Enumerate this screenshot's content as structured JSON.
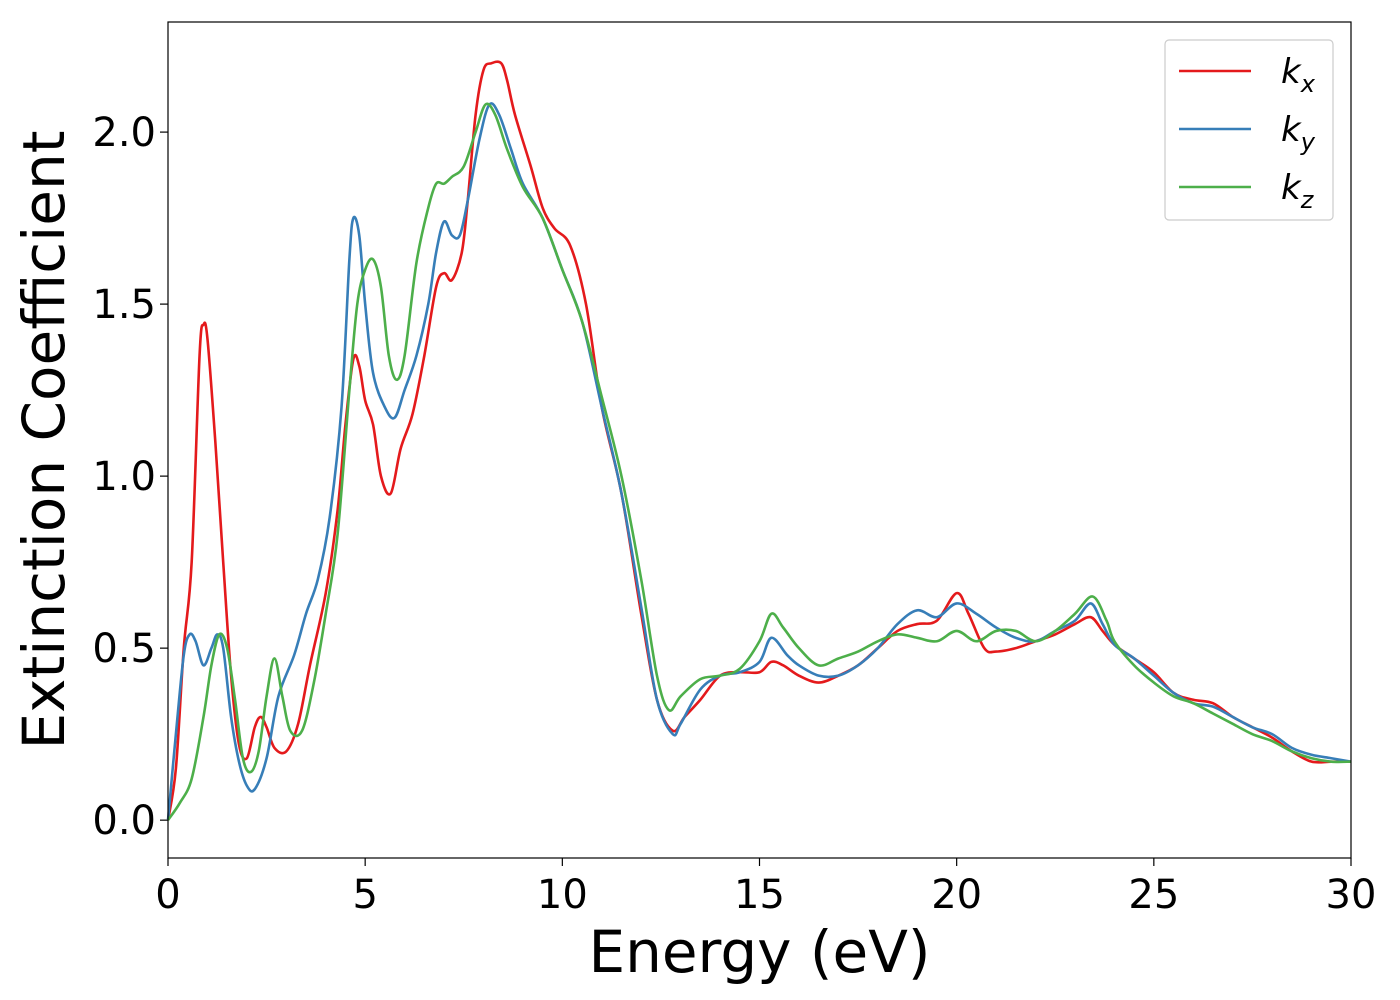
{
  "chart_data": {
    "type": "line",
    "xlabel": "Energy (eV)",
    "ylabel": "Extinction Coefficient",
    "xlim": [
      0,
      30
    ],
    "ylim": [
      -0.11,
      2.32
    ],
    "xticks": [
      0,
      5,
      10,
      15,
      20,
      25,
      30
    ],
    "yticks": [
      0.0,
      0.5,
      1.0,
      1.5,
      2.0
    ],
    "xtick_labels": [
      "0",
      "5",
      "10",
      "15",
      "20",
      "25",
      "30"
    ],
    "ytick_labels": [
      "0.0",
      "0.5",
      "1.0",
      "1.5",
      "2.0"
    ],
    "grid": false,
    "legend_position": "top-right",
    "series": [
      {
        "name": "k",
        "subscript": "x",
        "color": "#e41a1c",
        "points": [
          [
            0,
            0.0
          ],
          [
            0.2,
            0.15
          ],
          [
            0.4,
            0.5
          ],
          [
            0.6,
            0.75
          ],
          [
            0.8,
            1.35
          ],
          [
            0.9,
            1.44
          ],
          [
            1.0,
            1.4
          ],
          [
            1.2,
            1.1
          ],
          [
            1.4,
            0.75
          ],
          [
            1.6,
            0.42
          ],
          [
            1.8,
            0.22
          ],
          [
            2.0,
            0.18
          ],
          [
            2.2,
            0.27
          ],
          [
            2.35,
            0.3
          ],
          [
            2.5,
            0.27
          ],
          [
            2.7,
            0.21
          ],
          [
            3.0,
            0.2
          ],
          [
            3.3,
            0.28
          ],
          [
            3.6,
            0.45
          ],
          [
            4.0,
            0.66
          ],
          [
            4.3,
            0.9
          ],
          [
            4.5,
            1.15
          ],
          [
            4.7,
            1.34
          ],
          [
            4.85,
            1.32
          ],
          [
            5.0,
            1.22
          ],
          [
            5.2,
            1.15
          ],
          [
            5.4,
            1.0
          ],
          [
            5.65,
            0.95
          ],
          [
            5.9,
            1.08
          ],
          [
            6.2,
            1.18
          ],
          [
            6.5,
            1.35
          ],
          [
            6.8,
            1.55
          ],
          [
            7.0,
            1.59
          ],
          [
            7.2,
            1.57
          ],
          [
            7.45,
            1.65
          ],
          [
            7.6,
            1.8
          ],
          [
            7.8,
            2.05
          ],
          [
            8.0,
            2.18
          ],
          [
            8.2,
            2.2
          ],
          [
            8.45,
            2.2
          ],
          [
            8.6,
            2.15
          ],
          [
            8.8,
            2.05
          ],
          [
            9.2,
            1.9
          ],
          [
            9.5,
            1.78
          ],
          [
            9.8,
            1.72
          ],
          [
            10.2,
            1.67
          ],
          [
            10.6,
            1.5
          ],
          [
            11.0,
            1.2
          ],
          [
            11.5,
            0.95
          ],
          [
            12.0,
            0.6
          ],
          [
            12.4,
            0.35
          ],
          [
            12.8,
            0.26
          ],
          [
            13.1,
            0.3
          ],
          [
            13.5,
            0.35
          ],
          [
            14.0,
            0.42
          ],
          [
            14.5,
            0.43
          ],
          [
            15.0,
            0.43
          ],
          [
            15.3,
            0.46
          ],
          [
            15.6,
            0.45
          ],
          [
            16.0,
            0.42
          ],
          [
            16.5,
            0.4
          ],
          [
            17.0,
            0.42
          ],
          [
            17.5,
            0.45
          ],
          [
            18.0,
            0.5
          ],
          [
            18.5,
            0.55
          ],
          [
            19.0,
            0.57
          ],
          [
            19.5,
            0.58
          ],
          [
            20.0,
            0.66
          ],
          [
            20.3,
            0.6
          ],
          [
            20.7,
            0.5
          ],
          [
            21.0,
            0.49
          ],
          [
            21.5,
            0.5
          ],
          [
            22.0,
            0.52
          ],
          [
            22.5,
            0.54
          ],
          [
            23.0,
            0.57
          ],
          [
            23.4,
            0.59
          ],
          [
            23.7,
            0.55
          ],
          [
            24.0,
            0.51
          ],
          [
            24.5,
            0.47
          ],
          [
            25.0,
            0.43
          ],
          [
            25.5,
            0.37
          ],
          [
            26.0,
            0.35
          ],
          [
            26.5,
            0.34
          ],
          [
            27.0,
            0.3
          ],
          [
            27.5,
            0.27
          ],
          [
            28.0,
            0.24
          ],
          [
            28.5,
            0.2
          ],
          [
            29.0,
            0.17
          ],
          [
            29.5,
            0.17
          ],
          [
            30.0,
            0.17
          ]
        ]
      },
      {
        "name": "k",
        "subscript": "y",
        "color": "#377eb8",
        "points": [
          [
            0,
            0.0
          ],
          [
            0.2,
            0.25
          ],
          [
            0.4,
            0.48
          ],
          [
            0.55,
            0.54
          ],
          [
            0.7,
            0.52
          ],
          [
            0.9,
            0.45
          ],
          [
            1.1,
            0.5
          ],
          [
            1.25,
            0.54
          ],
          [
            1.4,
            0.5
          ],
          [
            1.6,
            0.3
          ],
          [
            1.8,
            0.17
          ],
          [
            2.0,
            0.1
          ],
          [
            2.2,
            0.09
          ],
          [
            2.5,
            0.18
          ],
          [
            2.8,
            0.36
          ],
          [
            3.2,
            0.48
          ],
          [
            3.5,
            0.6
          ],
          [
            3.8,
            0.7
          ],
          [
            4.1,
            0.88
          ],
          [
            4.4,
            1.2
          ],
          [
            4.6,
            1.63
          ],
          [
            4.7,
            1.75
          ],
          [
            4.85,
            1.7
          ],
          [
            5.0,
            1.5
          ],
          [
            5.2,
            1.3
          ],
          [
            5.5,
            1.2
          ],
          [
            5.75,
            1.17
          ],
          [
            6.0,
            1.25
          ],
          [
            6.3,
            1.35
          ],
          [
            6.6,
            1.5
          ],
          [
            6.8,
            1.65
          ],
          [
            7.0,
            1.74
          ],
          [
            7.2,
            1.7
          ],
          [
            7.4,
            1.7
          ],
          [
            7.6,
            1.8
          ],
          [
            7.9,
            1.98
          ],
          [
            8.15,
            2.08
          ],
          [
            8.4,
            2.05
          ],
          [
            8.7,
            1.95
          ],
          [
            9.0,
            1.85
          ],
          [
            9.5,
            1.75
          ],
          [
            10.0,
            1.6
          ],
          [
            10.5,
            1.45
          ],
          [
            11.0,
            1.2
          ],
          [
            11.5,
            0.95
          ],
          [
            12.0,
            0.62
          ],
          [
            12.4,
            0.35
          ],
          [
            12.8,
            0.25
          ],
          [
            13.0,
            0.28
          ],
          [
            13.5,
            0.38
          ],
          [
            14.0,
            0.42
          ],
          [
            14.5,
            0.43
          ],
          [
            15.0,
            0.46
          ],
          [
            15.3,
            0.53
          ],
          [
            15.7,
            0.48
          ],
          [
            16.0,
            0.45
          ],
          [
            16.5,
            0.42
          ],
          [
            17.0,
            0.42
          ],
          [
            17.5,
            0.45
          ],
          [
            18.0,
            0.5
          ],
          [
            18.5,
            0.57
          ],
          [
            19.0,
            0.61
          ],
          [
            19.5,
            0.59
          ],
          [
            20.0,
            0.63
          ],
          [
            20.5,
            0.6
          ],
          [
            21.0,
            0.56
          ],
          [
            21.5,
            0.53
          ],
          [
            22.0,
            0.52
          ],
          [
            22.5,
            0.55
          ],
          [
            23.0,
            0.58
          ],
          [
            23.4,
            0.63
          ],
          [
            23.7,
            0.57
          ],
          [
            24.0,
            0.51
          ],
          [
            24.5,
            0.47
          ],
          [
            25.0,
            0.42
          ],
          [
            25.5,
            0.37
          ],
          [
            26.0,
            0.34
          ],
          [
            26.5,
            0.33
          ],
          [
            27.0,
            0.3
          ],
          [
            27.5,
            0.27
          ],
          [
            28.0,
            0.25
          ],
          [
            28.5,
            0.21
          ],
          [
            29.0,
            0.19
          ],
          [
            29.5,
            0.18
          ],
          [
            30.0,
            0.17
          ]
        ]
      },
      {
        "name": "k",
        "subscript": "z",
        "color": "#4daf4a",
        "points": [
          [
            0,
            0.0
          ],
          [
            0.3,
            0.05
          ],
          [
            0.6,
            0.12
          ],
          [
            0.9,
            0.3
          ],
          [
            1.1,
            0.45
          ],
          [
            1.3,
            0.54
          ],
          [
            1.5,
            0.5
          ],
          [
            1.7,
            0.35
          ],
          [
            1.9,
            0.18
          ],
          [
            2.1,
            0.14
          ],
          [
            2.3,
            0.2
          ],
          [
            2.5,
            0.36
          ],
          [
            2.7,
            0.47
          ],
          [
            2.9,
            0.36
          ],
          [
            3.1,
            0.26
          ],
          [
            3.4,
            0.26
          ],
          [
            3.7,
            0.4
          ],
          [
            4.0,
            0.6
          ],
          [
            4.3,
            0.83
          ],
          [
            4.6,
            1.25
          ],
          [
            4.8,
            1.5
          ],
          [
            5.0,
            1.6
          ],
          [
            5.2,
            1.63
          ],
          [
            5.4,
            1.55
          ],
          [
            5.6,
            1.35
          ],
          [
            5.8,
            1.28
          ],
          [
            6.0,
            1.35
          ],
          [
            6.3,
            1.62
          ],
          [
            6.6,
            1.78
          ],
          [
            6.8,
            1.85
          ],
          [
            7.0,
            1.85
          ],
          [
            7.2,
            1.87
          ],
          [
            7.5,
            1.9
          ],
          [
            7.8,
            2.0
          ],
          [
            8.05,
            2.08
          ],
          [
            8.3,
            2.05
          ],
          [
            8.6,
            1.95
          ],
          [
            9.0,
            1.84
          ],
          [
            9.5,
            1.75
          ],
          [
            10.0,
            1.6
          ],
          [
            10.5,
            1.45
          ],
          [
            11.0,
            1.23
          ],
          [
            11.5,
            1.0
          ],
          [
            12.0,
            0.7
          ],
          [
            12.4,
            0.42
          ],
          [
            12.7,
            0.32
          ],
          [
            13.0,
            0.36
          ],
          [
            13.5,
            0.41
          ],
          [
            14.0,
            0.42
          ],
          [
            14.5,
            0.44
          ],
          [
            15.0,
            0.52
          ],
          [
            15.3,
            0.6
          ],
          [
            15.6,
            0.56
          ],
          [
            16.0,
            0.5
          ],
          [
            16.5,
            0.45
          ],
          [
            17.0,
            0.47
          ],
          [
            17.5,
            0.49
          ],
          [
            18.0,
            0.52
          ],
          [
            18.5,
            0.54
          ],
          [
            19.0,
            0.53
          ],
          [
            19.5,
            0.52
          ],
          [
            20.0,
            0.55
          ],
          [
            20.5,
            0.52
          ],
          [
            21.0,
            0.55
          ],
          [
            21.5,
            0.55
          ],
          [
            22.0,
            0.52
          ],
          [
            22.5,
            0.55
          ],
          [
            23.0,
            0.6
          ],
          [
            23.45,
            0.65
          ],
          [
            23.8,
            0.58
          ],
          [
            24.0,
            0.52
          ],
          [
            24.5,
            0.45
          ],
          [
            25.0,
            0.4
          ],
          [
            25.5,
            0.36
          ],
          [
            26.0,
            0.34
          ],
          [
            26.5,
            0.31
          ],
          [
            27.0,
            0.28
          ],
          [
            27.5,
            0.25
          ],
          [
            28.0,
            0.23
          ],
          [
            28.5,
            0.2
          ],
          [
            29.0,
            0.18
          ],
          [
            29.5,
            0.17
          ],
          [
            30.0,
            0.17
          ]
        ]
      }
    ]
  }
}
